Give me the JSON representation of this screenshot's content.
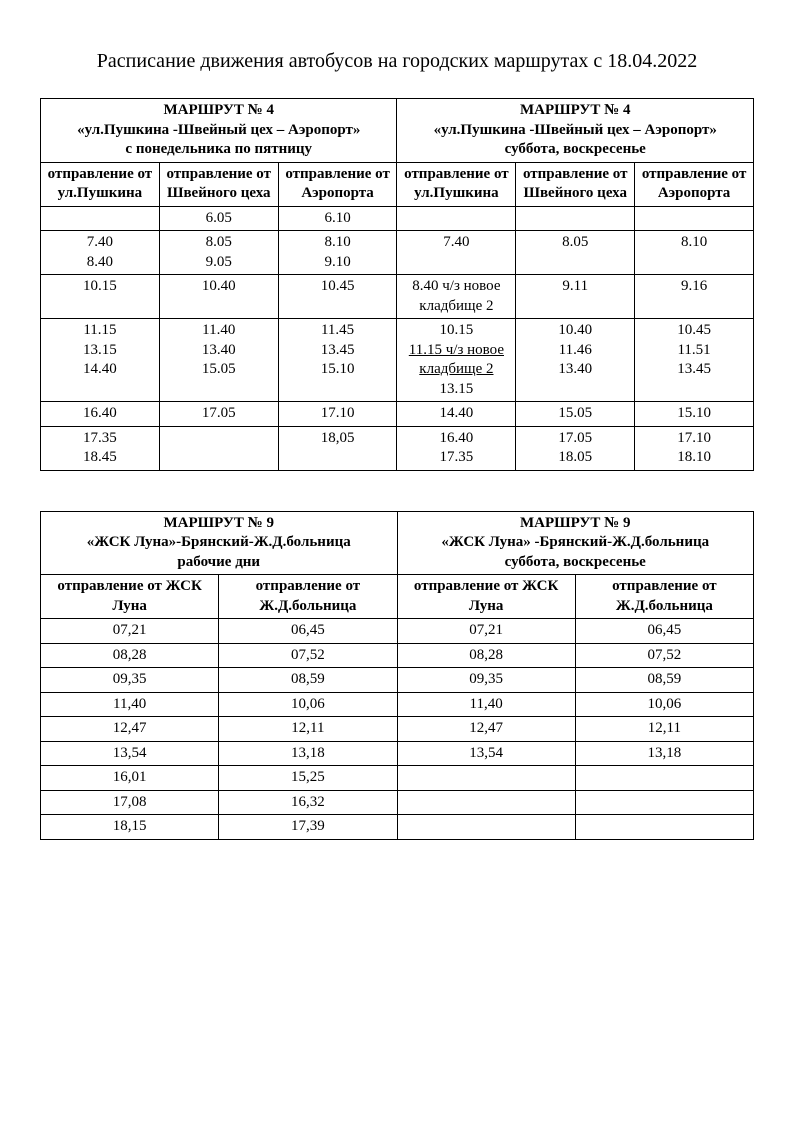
{
  "title": "Расписание движения автобусов на городских маршрутах с 18.04.2022",
  "t1": {
    "route_left_title": "МАРШРУТ № 4",
    "route_left_sub1": "«ул.Пушкина  -Швейный цех – Аэропорт»",
    "route_left_sub2": "с понедельника по пятницу",
    "route_right_title": "МАРШРУТ № 4",
    "route_right_sub1": "«ул.Пушкина  -Швейный цех – Аэропорт»",
    "route_right_sub2": "суббота, воскресенье",
    "cols": {
      "c1": "отправление от ул.Пушкина",
      "c2": "отправление от Швейного цеха",
      "c3": "отправление от Аэропорта",
      "c4": "отправление от ул.Пушкина",
      "c5": "отправление от Швейного цеха",
      "c6": "отправление от Аэропорта"
    },
    "r1": {
      "c1": "",
      "c2": "6.05",
      "c3": "6.10",
      "c4": "",
      "c5": "",
      "c6": ""
    },
    "r2": {
      "c1": "7.40\n8.40",
      "c2": "8.05\n9.05",
      "c3": "8.10\n9.10",
      "c4": "7.40",
      "c5": "8.05",
      "c6": "8.10"
    },
    "r3": {
      "c1": "10.15",
      "c2": "10.40",
      "c3": "10.45",
      "c4": "8.40 ч/з новое кладбище 2",
      "c5": "9.11",
      "c6": "9.16"
    },
    "r4": {
      "c1": "11.15\n13.15\n14.40",
      "c2": "11.40\n13.40\n15.05",
      "c3": "11.45\n13.45\n15.10",
      "c4a": "10.15",
      "c4b": "11.15 ч/з новое кладбище 2",
      "c4c": "13.15",
      "c5": "10.40\n11.46\n13.40",
      "c6": "10.45\n11.51\n13.45"
    },
    "r5": {
      "c1": "16.40",
      "c2": "17.05",
      "c3": "17.10",
      "c4": "14.40",
      "c5": "15.05",
      "c6": "15.10"
    },
    "r6": {
      "c1": "17.35\n18.45",
      "c2": "",
      "c3": "18,05",
      "c4": "16.40\n17.35",
      "c5": "17.05\n18.05",
      "c6": "17.10\n18.10"
    }
  },
  "t2": {
    "route_left_title": "МАРШРУТ № 9",
    "route_left_sub1": "«ЖСК Луна»-Брянский-Ж.Д.больница",
    "route_left_sub2": "рабочие дни",
    "route_right_title": "МАРШРУТ № 9",
    "route_right_sub1": "«ЖСК Луна» -Брянский-Ж.Д.больница",
    "route_right_sub2": "суббота, воскресенье",
    "cols": {
      "c1": "отправление от ЖСК Луна",
      "c2": "отправление от Ж.Д.больница",
      "c3": "отправление от ЖСК Луна",
      "c4": "отправление от Ж.Д.больница"
    },
    "rows": [
      {
        "c1": "07,21",
        "c2": "06,45",
        "c3": "07,21",
        "c4": "06,45"
      },
      {
        "c1": "08,28",
        "c2": "07,52",
        "c3": "08,28",
        "c4": "07,52"
      },
      {
        "c1": "09,35",
        "c2": "08,59",
        "c3": "09,35",
        "c4": "08,59"
      },
      {
        "c1": "11,40",
        "c2": "10,06",
        "c3": "11,40",
        "c4": "10,06"
      },
      {
        "c1": "12,47",
        "c2": "12,11",
        "c3": "12,47",
        "c4": "12,11"
      },
      {
        "c1": "13,54",
        "c2": "13,18",
        "c3": "13,54",
        "c4": "13,18"
      },
      {
        "c1": "16,01",
        "c2": "15,25",
        "c3": "",
        "c4": ""
      },
      {
        "c1": "17,08",
        "c2": "16,32",
        "c3": "",
        "c4": ""
      },
      {
        "c1": "18,15",
        "c2": "17,39",
        "c3": "",
        "c4": ""
      }
    ]
  }
}
